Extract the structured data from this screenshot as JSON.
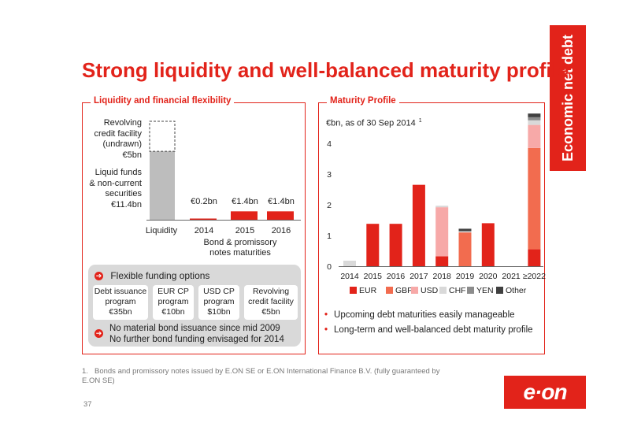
{
  "page": {
    "title": "Strong liquidity and well-balanced maturity profile",
    "side_tab": "Economic net debt",
    "page_number": "37",
    "logo": "e·on"
  },
  "colors": {
    "accent": "#e2231a",
    "grey": "#bdbdbd",
    "panel_bg": "#d9d9d9"
  },
  "left_panel": {
    "label": "Liquidity and financial flexibility",
    "revolving_label": [
      "Revolving",
      "credit facility",
      "(undrawn)",
      "€5bn"
    ],
    "liquid_label": [
      "Liquid funds",
      "& non-current",
      "securities",
      "€11.4bn"
    ],
    "bar_values": [
      "€0.2bn",
      "€1.4bn",
      "€1.4bn"
    ],
    "x_labels": [
      "Liquidity",
      "2014",
      "2015",
      "2016"
    ],
    "x_caption": [
      "Bond & promissory",
      "notes maturities"
    ],
    "funding": {
      "heading": "Flexible funding options",
      "programs": [
        {
          "lines": [
            "Debt issuance",
            "program",
            "€35bn"
          ]
        },
        {
          "lines": [
            "EUR CP",
            "program",
            "€10bn"
          ]
        },
        {
          "lines": [
            "USD CP",
            "program",
            "$10bn"
          ]
        },
        {
          "lines": [
            "Revolving",
            "credit facility",
            "€5bn"
          ]
        }
      ],
      "note_lines": [
        "No material bond issuance since mid 2009",
        "No further bond funding envisaged for 2014"
      ]
    }
  },
  "right_panel": {
    "label": "Maturity Profile",
    "subtitle": "€bn, as of 30 Sep 2014",
    "subtitle_sup": "1",
    "bullets": [
      "Upcoming debt maturities easily manageable",
      "Long-term and well-balanced debt maturity profile"
    ]
  },
  "footnote": {
    "number": "1.",
    "text": "Bonds and promissory notes issued by E.ON SE or E.ON International Finance B.V. (fully guaranteed by E.ON SE)"
  },
  "chart_data": [
    {
      "type": "bar",
      "stacked": true,
      "categories": [
        "Liquidity",
        "2014",
        "2015",
        "2016"
      ],
      "series": [
        {
          "name": "Liquid funds & non-current securities",
          "values": [
            11.4,
            0,
            0,
            0
          ],
          "color": "#bdbdbd"
        },
        {
          "name": "Revolving credit facility (undrawn)",
          "values": [
            5,
            0,
            0,
            0
          ],
          "color": "#ffffff",
          "dashed": true
        },
        {
          "name": "Bond & promissory notes maturities",
          "values": [
            0,
            0.2,
            1.4,
            1.4
          ],
          "color": "#e2231a"
        }
      ],
      "ylim": [
        0,
        16.4
      ],
      "axis": {
        "show_y": false
      }
    },
    {
      "type": "bar",
      "stacked": true,
      "categories": [
        "2014",
        "2015",
        "2016",
        "2017",
        "2018",
        "2019",
        "2020",
        "2021",
        "≥2022"
      ],
      "series": [
        {
          "name": "EUR",
          "color": "#e2231a",
          "values": [
            0,
            1.38,
            1.38,
            2.65,
            0.32,
            0,
            1.4,
            0,
            0.55
          ]
        },
        {
          "name": "GBP",
          "color": "#f26c4f",
          "values": [
            0,
            0,
            0,
            0,
            0,
            1.1,
            0,
            0,
            3.3
          ]
        },
        {
          "name": "USD",
          "color": "#f7a9a8",
          "values": [
            0,
            0,
            0,
            0,
            1.6,
            0,
            0,
            0,
            0.75
          ]
        },
        {
          "name": "CHF",
          "color": "#d9d9d9",
          "values": [
            0.18,
            0,
            0,
            0,
            0.05,
            0.04,
            0,
            0,
            0.15
          ]
        },
        {
          "name": "YEN",
          "color": "#8c8c8c",
          "values": [
            0,
            0,
            0,
            0,
            0,
            0,
            0,
            0,
            0.1
          ]
        },
        {
          "name": "Other",
          "color": "#404040",
          "values": [
            0,
            0,
            0,
            0,
            0,
            0.08,
            0,
            0,
            0.12
          ]
        }
      ],
      "yticks": [
        0,
        1,
        2,
        3,
        4
      ],
      "ylim": [
        0,
        4.7
      ],
      "legend": "bottom",
      "grid": false
    }
  ]
}
